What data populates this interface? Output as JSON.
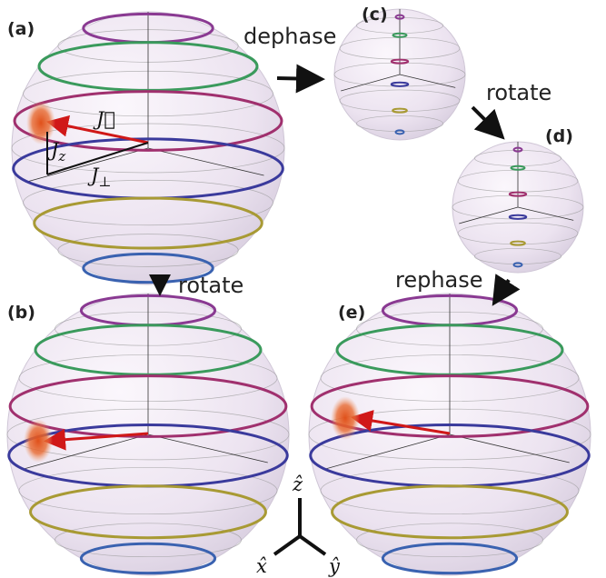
{
  "panels": [
    {
      "label": "(a)"
    },
    {
      "label": "(b)"
    },
    {
      "label": "(c)"
    },
    {
      "label": "(d)"
    },
    {
      "label": "(e)"
    }
  ],
  "transitions": [
    {
      "label": "dephase"
    },
    {
      "label": "rotate"
    },
    {
      "label": "rotate"
    },
    {
      "label": "rephase"
    }
  ],
  "spin_labels": {
    "vector": "J⃗",
    "parallel": {
      "base": "J",
      "sub": "z"
    },
    "perpendicular": {
      "base": "J",
      "sub": "⊥"
    }
  },
  "axes": {
    "z": "ẑ",
    "x": "x̂",
    "y": "ŷ"
  }
}
